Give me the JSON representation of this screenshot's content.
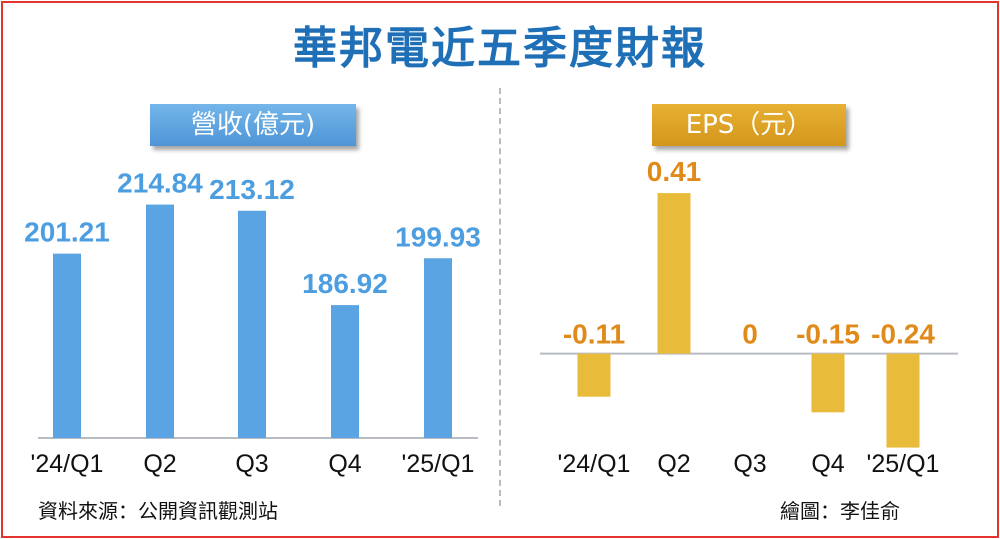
{
  "title": "華邦電近五季度財報",
  "source_note": "資料來源：公開資訊觀測站",
  "credit": "繪圖：李佳俞",
  "chart_data": [
    {
      "type": "bar",
      "title": "營收(億元)",
      "categories": [
        "'24/Q1",
        "Q2",
        "Q3",
        "Q4",
        "'25/Q1"
      ],
      "values": [
        201.21,
        214.84,
        213.12,
        186.92,
        199.93
      ],
      "value_labels": [
        "201.21",
        "214.84",
        "213.12",
        "186.92",
        "199.93"
      ],
      "ylim": [
        150,
        230
      ],
      "grid": false,
      "color": "#5ba4e3",
      "label_color": "#4d9ee0"
    },
    {
      "type": "bar",
      "title": "EPS（元）",
      "categories": [
        "'24/Q1",
        "Q2",
        "Q3",
        "Q4",
        "'25/Q1"
      ],
      "values": [
        -0.11,
        0.41,
        0,
        -0.15,
        -0.24
      ],
      "value_labels": [
        "-0.11",
        "0.41",
        "0",
        "-0.15",
        "-0.24"
      ],
      "ylim": [
        -0.31,
        0.52
      ],
      "grid": false,
      "color": "#e8bb3a",
      "label_color": "#e08a1a"
    }
  ]
}
